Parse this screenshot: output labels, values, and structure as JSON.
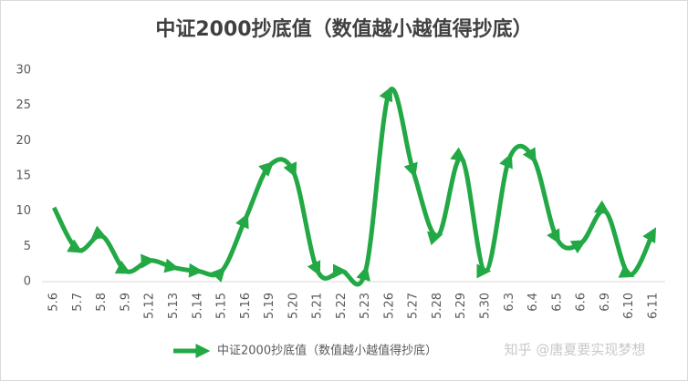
{
  "chart_data": {
    "type": "line",
    "title": "中证2000抄底值（数值越小越值得抄底）",
    "categories": [
      "5.6",
      "5.7",
      "5.8",
      "5.9",
      "5.12",
      "5.13",
      "5.14",
      "5.15",
      "5.16",
      "5.19",
      "5.20",
      "5.21",
      "5.22",
      "5.23",
      "5.26",
      "5.27",
      "5.28",
      "5.29",
      "5.30",
      "6.3",
      "6.4",
      "6.5",
      "6.6",
      "6.9",
      "6.10",
      "6.11"
    ],
    "series": [
      {
        "name": "中证2000抄底值（数值越小越值得抄底）",
        "color": "#22a845",
        "values": [
          10.5,
          4.5,
          6.5,
          1.5,
          3,
          2,
          1.5,
          1.5,
          9,
          16.5,
          15.5,
          1.5,
          1.5,
          1.5,
          27,
          15.5,
          6.5,
          17.5,
          1.5,
          17.5,
          17.5,
          6,
          5.5,
          10,
          1,
          7
        ]
      }
    ],
    "ylim": [
      0,
      30
    ],
    "yticks": [
      0,
      5,
      10,
      15,
      20,
      25,
      30
    ],
    "grid": false,
    "legend": "bottom",
    "watermark": "知乎 @唐夏要实现梦想"
  }
}
